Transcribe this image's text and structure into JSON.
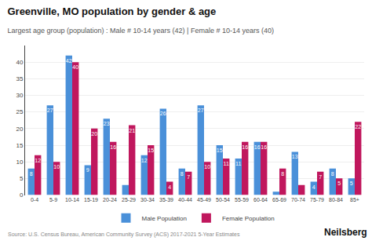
{
  "chart_data": {
    "type": "bar",
    "title": "Greenville, MO population by gender & age",
    "subtitle": "Largest age group (population) : Male # 10-14 years (42) | Female # 10-14 years (40)",
    "annotations": [
      "Source: U.S. Census Bureau, American Community Survey (ACS) 2017-2021 5-Year Estimates",
      "Neilsberg"
    ],
    "categories": [
      "0-4",
      "5-9",
      "10-14",
      "15-19",
      "20-24",
      "25-29",
      "30-34",
      "35-39",
      "40-44",
      "45-49",
      "50-54",
      "55-59",
      "60-64",
      "65-69",
      "70-74",
      "75-79",
      "80-84",
      "85+"
    ],
    "series": [
      {
        "name": "Male Population",
        "color": "#4a90d9",
        "values": [
          8,
          27,
          42,
          9,
          23,
          3,
          12,
          26,
          8,
          27,
          15,
          11,
          16,
          1,
          13,
          4,
          8,
          5
        ],
        "value_labels": [
          "8",
          "27",
          "42",
          "9",
          "23",
          null,
          "12",
          "26",
          "8",
          "27",
          "15",
          "11",
          "16",
          null,
          "13",
          "4",
          "8",
          "5"
        ]
      },
      {
        "name": "Female Population",
        "color": "#c0175d",
        "values": [
          12,
          10,
          40,
          20,
          16,
          21,
          15,
          4,
          7,
          10,
          11,
          16,
          16,
          8,
          3,
          7,
          5,
          22
        ],
        "value_labels": [
          "12",
          "10",
          "40",
          "20",
          "16",
          "21",
          "15",
          "4",
          "7",
          "10",
          "11",
          "16",
          "16",
          "8",
          null,
          "7",
          "5",
          "22"
        ]
      }
    ],
    "ylim": [
      0,
      45
    ],
    "yticks": [
      0,
      5,
      10,
      15,
      20,
      25,
      30,
      35,
      40
    ],
    "grid": true,
    "legend": "bottom",
    "data_labels": true
  }
}
